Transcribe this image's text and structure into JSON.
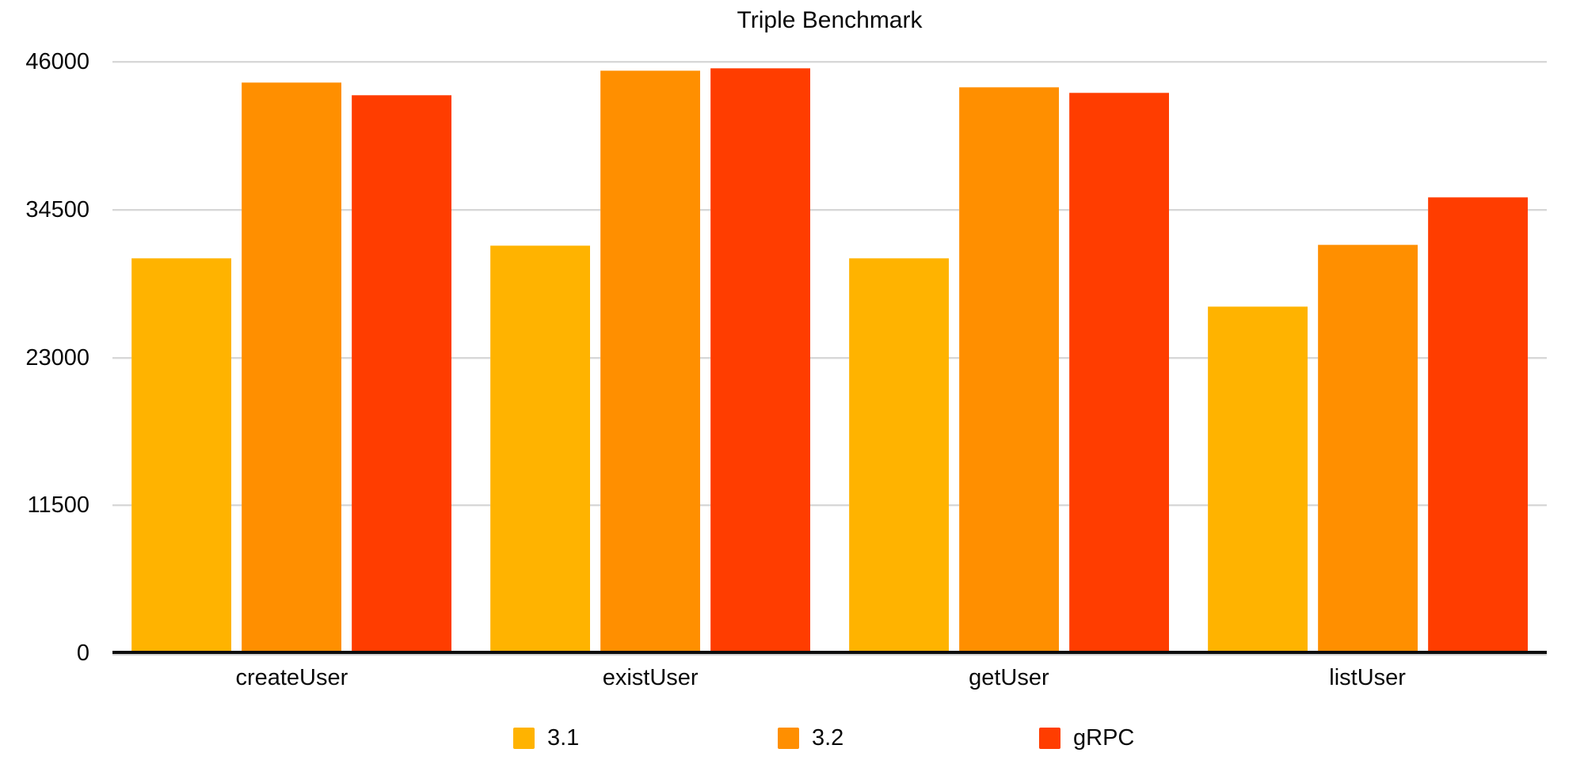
{
  "page": {
    "background_color": "#ffffff",
    "text_color": "#0a0a0a"
  },
  "chart_data": {
    "type": "bar",
    "title": "Triple Benchmark",
    "categories": [
      "createUser",
      "existUser",
      "getUser",
      "listUser"
    ],
    "series": [
      {
        "name": "3.1",
        "color": "#FFB300",
        "values": [
          30700,
          31700,
          30700,
          27000
        ]
      },
      {
        "name": "3.2",
        "color": "#FF8F00",
        "values": [
          44400,
          45300,
          44000,
          31800
        ]
      },
      {
        "name": "gRPC",
        "color": "#FF3D00",
        "values": [
          43400,
          45500,
          43600,
          35500
        ]
      }
    ],
    "xlabel": "",
    "ylabel": "",
    "ylim": [
      0,
      46000
    ],
    "yticks": [
      46000,
      34500,
      23000,
      11500,
      0
    ],
    "grid": true,
    "gridline_color": "#d7d7d7",
    "axis_color": "#0d0d0d",
    "legend_position": "bottom"
  }
}
